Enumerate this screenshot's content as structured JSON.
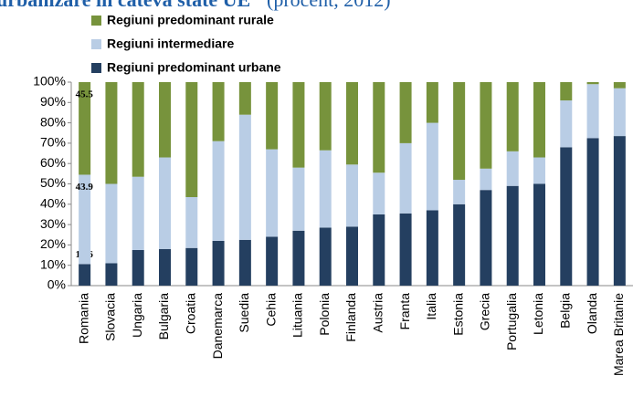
{
  "chart_data": {
    "type": "stacked_bar",
    "title": "urbanizare în câteva state UE",
    "subtitle": "(procent, 2012)",
    "categories": [
      "Romania",
      "Slovacia",
      "Ungaria",
      "Bulgaria",
      "Croatia",
      "Danemarca",
      "Suedia",
      "Cehia",
      "Lituania",
      "Polonia",
      "Finlanda",
      "Austria",
      "Franta",
      "Italia",
      "Estonia",
      "Grecia",
      "Portugalia",
      "Letonia",
      "Belgia",
      "Olanda",
      "Marea Britanie"
    ],
    "series": [
      {
        "name": "Regiuni predominant urbane",
        "color": "#243f60",
        "values": [
          10.6,
          11,
          17.5,
          18,
          18.5,
          22,
          22.5,
          24,
          27,
          28.5,
          29,
          35,
          35.5,
          37,
          40,
          47,
          49,
          50,
          68,
          72.5,
          73.5
        ]
      },
      {
        "name": "Regiuni intermediare",
        "color": "#b9cde5",
        "values": [
          43.9,
          39,
          36,
          45,
          25,
          49,
          61.5,
          43,
          31,
          38,
          30.5,
          20.5,
          34.5,
          43,
          12,
          10.5,
          17,
          13,
          23,
          26.5,
          23.5
        ]
      },
      {
        "name": "Regiuni predominant rurale",
        "color": "#77933c",
        "values": [
          45.5,
          50,
          46.5,
          37,
          56.5,
          29,
          16,
          33,
          42,
          33.5,
          40.5,
          44.5,
          30,
          20,
          48,
          42.5,
          34,
          37,
          9,
          1,
          3
        ]
      }
    ],
    "labeled_category": 0,
    "ylim": [
      0,
      100
    ],
    "yticks": [
      {
        "value": 0,
        "label": "0%"
      },
      {
        "value": 10,
        "label": "10%"
      },
      {
        "value": 20,
        "label": "20%"
      },
      {
        "value": 30,
        "label": "30%"
      },
      {
        "value": 40,
        "label": "40%"
      },
      {
        "value": 50,
        "label": "50%"
      },
      {
        "value": 60,
        "label": "60%"
      },
      {
        "value": 70,
        "label": "70%"
      },
      {
        "value": 80,
        "label": "80%"
      },
      {
        "value": 90,
        "label": "90%"
      },
      {
        "value": 100,
        "label": "100%"
      }
    ]
  }
}
